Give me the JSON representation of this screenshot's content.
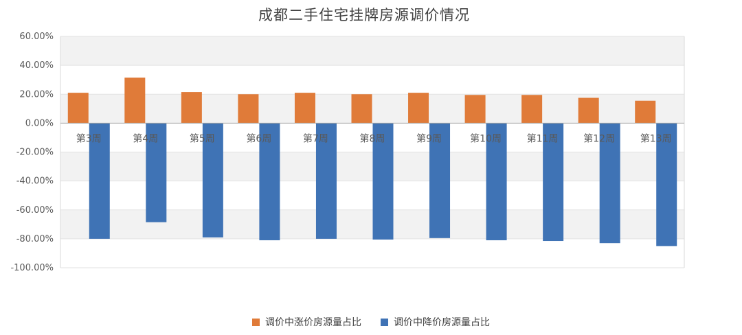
{
  "chart_data": {
    "type": "bar",
    "title": "成都二手住宅挂牌房源调价情况",
    "categories": [
      "第3周",
      "第4周",
      "第5周",
      "第6周",
      "第7周",
      "第8周",
      "第9周",
      "第10周",
      "第11周",
      "第12周",
      "第13周"
    ],
    "series": [
      {
        "name": "调价中涨价房源量占比",
        "color": "#E07B39",
        "values": [
          21.0,
          31.5,
          21.5,
          20.0,
          21.0,
          20.0,
          21.0,
          19.5,
          19.5,
          17.5,
          15.5
        ]
      },
      {
        "name": "调价中降价房源量占比",
        "color": "#3F73B5",
        "values": [
          -80.0,
          -68.5,
          -79.0,
          -81.0,
          -80.0,
          -80.5,
          -79.5,
          -81.0,
          -81.5,
          -83.0,
          -85.0
        ]
      }
    ],
    "y_ticks": [
      "60.00%",
      "40.00%",
      "20.00%",
      "0.00%",
      "-20.00%",
      "-40.00%",
      "-60.00%",
      "-80.00%",
      "-100.00%"
    ],
    "ylim": [
      -100,
      60
    ],
    "grid": true,
    "legend_position": "bottom"
  }
}
